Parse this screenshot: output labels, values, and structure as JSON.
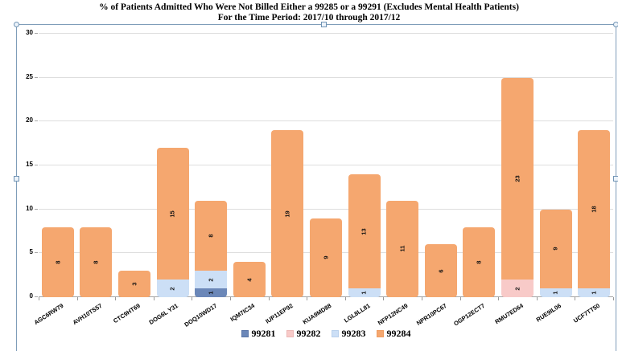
{
  "title": {
    "line1": "% of Patients Admitted Who Were Not Billed Either a 99285 or a 99291 (Excludes Mental Health Patients)",
    "line2": "For the Time Period: 2017/10 through 2017/12"
  },
  "chart_data": {
    "type": "bar",
    "stacked": true,
    "title": "% of Patients Admitted Who Were Not Billed Either a 99285 or a 99291 (Excludes Mental Health Patients)",
    "subtitle": "For the Time Period: 2017/10 through 2017/12",
    "categories": [
      "AGC6RW79",
      "AVH10TS57",
      "CTC9HT69",
      "DOG6L Y31",
      "DOQ10WD17",
      "IQM7IC34",
      "IUP11EP92",
      "KUA9MD88",
      "LGL8LL81",
      "NFP12NC49",
      "NPR10PC67",
      "OGP12ECT7",
      "RMU7ED64",
      "RUE9IL06",
      "UCF7TT50"
    ],
    "series": [
      {
        "name": "99281",
        "color": "#6B87B8",
        "border": "#5a76a8",
        "values": [
          0,
          0,
          0,
          0,
          1,
          0,
          0,
          0,
          0,
          0,
          0,
          0,
          0,
          0,
          0
        ]
      },
      {
        "name": "99282",
        "color": "#F8CAC8",
        "border": "#ecb8b6",
        "values": [
          0,
          0,
          0,
          0,
          0,
          0,
          0,
          0,
          0,
          0,
          0,
          0,
          2,
          0,
          0
        ]
      },
      {
        "name": "99283",
        "color": "#CCDFF6",
        "border": "#b9d1ec",
        "values": [
          0,
          0,
          0,
          2,
          2,
          0,
          0,
          0,
          1,
          0,
          0,
          0,
          0,
          1,
          1
        ]
      },
      {
        "name": "99284",
        "color": "#F5A76F",
        "border": "#ef9c60",
        "values": [
          8,
          8,
          3,
          15,
          8,
          4,
          19,
          9,
          13,
          11,
          6,
          8,
          23,
          9,
          18
        ]
      }
    ],
    "totals": [
      8,
      8,
      3,
      17,
      11,
      4,
      19,
      9,
      14,
      11,
      6,
      8,
      25,
      10,
      19
    ],
    "ylim": [
      0,
      30
    ],
    "yticks": [
      0,
      5,
      10,
      15,
      20,
      25,
      30
    ],
    "grid": "horizontal",
    "legend_position": "bottom",
    "bar_value_labels": "rotated-90-inside-segments"
  },
  "ui": {
    "frame_border_color": "#7F9DB9",
    "gridline_color": "#dedede",
    "zero_line_color": "#a6a6a6",
    "selection_handles": [
      "top-left",
      "top-center",
      "top-right",
      "mid-left",
      "mid-right"
    ]
  }
}
